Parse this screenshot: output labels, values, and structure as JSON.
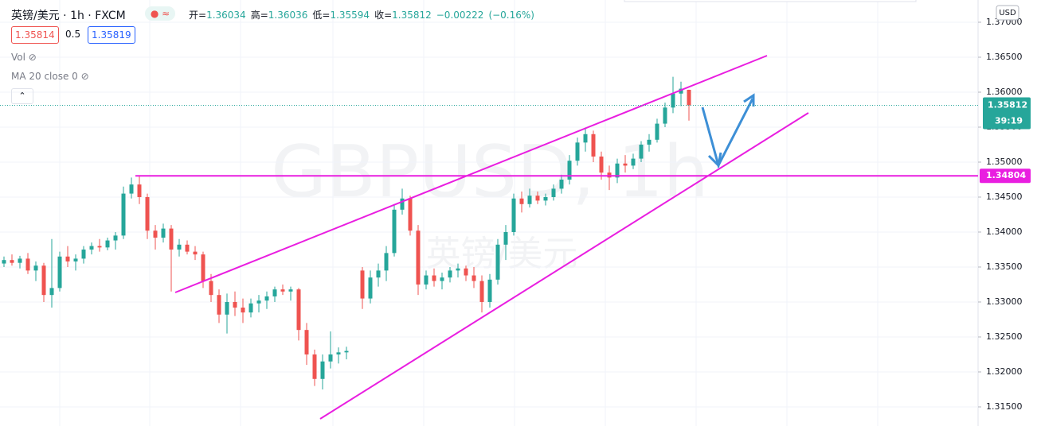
{
  "header": {
    "title": "英镑/美元 · 1h · FXCM",
    "ohlc": [
      {
        "label": "开=",
        "value": "1.36034"
      },
      {
        "label": "高=",
        "value": "1.36036"
      },
      {
        "label": "低=",
        "value": "1.35594"
      },
      {
        "label": "收=",
        "value": "1.35812"
      }
    ],
    "change": "−0.00222",
    "change_pct": "(−0.16%)",
    "bid": "1.35814",
    "spread": "0.5",
    "ask": "1.35819",
    "indicators": [
      "Vol",
      "MA 20 close 0"
    ]
  },
  "currency": "USD",
  "watermark": {
    "symbol": "GBPUSD, 1h",
    "name": "英镑/美元"
  },
  "chart_data": {
    "type": "candlestick",
    "up_color": "#26a69a",
    "down_color": "#ef5350",
    "grid": true,
    "ylim": [
      1.31227,
      1.37318
    ],
    "yticks": [
      {
        "value": 1.315,
        "label": "1.31500"
      },
      {
        "value": 1.32,
        "label": "1.32000"
      },
      {
        "value": 1.325,
        "label": "1.32500"
      },
      {
        "value": 1.33,
        "label": "1.33000"
      },
      {
        "value": 1.335,
        "label": "1.33500"
      },
      {
        "value": 1.34,
        "label": "1.34000"
      },
      {
        "value": 1.345,
        "label": "1.34500"
      },
      {
        "value": 1.35,
        "label": "1.35000"
      },
      {
        "value": 1.355,
        "label": "1.35500"
      },
      {
        "value": 1.36,
        "label": "1.36000"
      },
      {
        "value": 1.365,
        "label": "1.36500"
      },
      {
        "value": 1.37,
        "label": "1.37000"
      }
    ],
    "last_price": 1.35812,
    "last_price_color": "#26a69a",
    "countdown": "39:19",
    "levels": [
      {
        "value": 1.34804,
        "color": "#e91ee0"
      }
    ],
    "ohlc": [
      [
        1.3355,
        1.3365,
        1.335,
        1.336
      ],
      [
        1.336,
        1.3368,
        1.3352,
        1.3356
      ],
      [
        1.3356,
        1.3366,
        1.3348,
        1.3362
      ],
      [
        1.3362,
        1.337,
        1.334,
        1.3345
      ],
      [
        1.3345,
        1.3358,
        1.333,
        1.3352
      ],
      [
        1.3352,
        1.3356,
        1.33,
        1.331
      ],
      [
        1.331,
        1.339,
        1.3292,
        1.332
      ],
      [
        1.332,
        1.3372,
        1.3315,
        1.3365
      ],
      [
        1.3365,
        1.338,
        1.335,
        1.3358
      ],
      [
        1.3358,
        1.3368,
        1.3345,
        1.3362
      ],
      [
        1.3362,
        1.338,
        1.3355,
        1.3375
      ],
      [
        1.3375,
        1.3385,
        1.3368,
        1.338
      ],
      [
        1.338,
        1.339,
        1.3372,
        1.3378
      ],
      [
        1.3378,
        1.3392,
        1.3374,
        1.3388
      ],
      [
        1.3388,
        1.34,
        1.3375,
        1.3395
      ],
      [
        1.3395,
        1.3465,
        1.339,
        1.3455
      ],
      [
        1.3455,
        1.3478,
        1.3448,
        1.3468
      ],
      [
        1.3468,
        1.348,
        1.344,
        1.345
      ],
      [
        1.345,
        1.3455,
        1.339,
        1.3402
      ],
      [
        1.3402,
        1.341,
        1.3375,
        1.3392
      ],
      [
        1.3392,
        1.3412,
        1.3385,
        1.3405
      ],
      [
        1.3405,
        1.341,
        1.3315,
        1.3375
      ],
      [
        1.3375,
        1.339,
        1.3365,
        1.3382
      ],
      [
        1.3382,
        1.3388,
        1.3368,
        1.3372
      ],
      [
        1.3372,
        1.338,
        1.336,
        1.3368
      ],
      [
        1.3368,
        1.3372,
        1.332,
        1.333
      ],
      [
        1.333,
        1.334,
        1.33,
        1.331
      ],
      [
        1.331,
        1.3318,
        1.327,
        1.3282
      ],
      [
        1.3282,
        1.3312,
        1.3255,
        1.33
      ],
      [
        1.33,
        1.3315,
        1.328,
        1.3292
      ],
      [
        1.3292,
        1.3305,
        1.327,
        1.3285
      ],
      [
        1.3285,
        1.3305,
        1.3278,
        1.3298
      ],
      [
        1.3298,
        1.331,
        1.3285,
        1.3302
      ],
      [
        1.3302,
        1.3315,
        1.329,
        1.3308
      ],
      [
        1.3308,
        1.3322,
        1.33,
        1.3318
      ],
      [
        1.3318,
        1.3325,
        1.331,
        1.3315
      ],
      [
        1.3315,
        1.3322,
        1.3302,
        1.3318
      ],
      [
        1.3318,
        1.332,
        1.3245,
        1.326
      ],
      [
        1.326,
        1.327,
        1.321,
        1.3225
      ],
      [
        1.3225,
        1.3232,
        1.318,
        1.319
      ],
      [
        1.319,
        1.3225,
        1.3175,
        1.3215
      ],
      [
        1.3215,
        1.3258,
        1.3205,
        1.3225
      ],
      [
        1.3225,
        1.3235,
        1.3212,
        1.3228
      ],
      [
        1.3228,
        1.3236,
        1.3218,
        1.323
      ],
      null,
      [
        1.3345,
        1.335,
        1.329,
        1.3305
      ],
      [
        1.3305,
        1.3345,
        1.3298,
        1.3335
      ],
      [
        1.3335,
        1.3355,
        1.3322,
        1.3345
      ],
      [
        1.3345,
        1.338,
        1.333,
        1.337
      ],
      [
        1.337,
        1.344,
        1.3365,
        1.3432
      ],
      [
        1.3432,
        1.3462,
        1.3425,
        1.3448
      ],
      [
        1.3448,
        1.3452,
        1.3395,
        1.3402
      ],
      [
        1.3402,
        1.341,
        1.331,
        1.3325
      ],
      [
        1.3325,
        1.3345,
        1.3318,
        1.3338
      ],
      [
        1.3338,
        1.3348,
        1.3322,
        1.333
      ],
      [
        1.333,
        1.3342,
        1.3318,
        1.3335
      ],
      [
        1.3335,
        1.335,
        1.3328,
        1.3345
      ],
      [
        1.3345,
        1.3355,
        1.3335,
        1.3348
      ],
      [
        1.3348,
        1.3352,
        1.333,
        1.3338
      ],
      [
        1.3338,
        1.335,
        1.332,
        1.333
      ],
      [
        1.333,
        1.3338,
        1.3285,
        1.33
      ],
      [
        1.33,
        1.334,
        1.3292,
        1.3332
      ],
      [
        1.3332,
        1.339,
        1.3325,
        1.3382
      ],
      [
        1.3382,
        1.341,
        1.336,
        1.34
      ],
      [
        1.34,
        1.3455,
        1.3395,
        1.3448
      ],
      [
        1.3448,
        1.3458,
        1.3428,
        1.344
      ],
      [
        1.344,
        1.3462,
        1.3435,
        1.3452
      ],
      [
        1.3452,
        1.3458,
        1.344,
        1.3445
      ],
      [
        1.3445,
        1.3455,
        1.3438,
        1.345
      ],
      [
        1.345,
        1.3468,
        1.3445,
        1.3462
      ],
      [
        1.3462,
        1.3482,
        1.3455,
        1.3475
      ],
      [
        1.3475,
        1.351,
        1.3468,
        1.3502
      ],
      [
        1.3502,
        1.3535,
        1.3495,
        1.3528
      ],
      [
        1.3528,
        1.3548,
        1.3515,
        1.354
      ],
      [
        1.354,
        1.3545,
        1.35,
        1.3508
      ],
      [
        1.3508,
        1.3515,
        1.3475,
        1.3485
      ],
      [
        1.3485,
        1.3495,
        1.346,
        1.3478
      ],
      [
        1.3478,
        1.3505,
        1.347,
        1.3498
      ],
      [
        1.3498,
        1.351,
        1.3485,
        1.3495
      ],
      [
        1.3495,
        1.3512,
        1.349,
        1.3505
      ],
      [
        1.3505,
        1.353,
        1.35,
        1.3525
      ],
      [
        1.3525,
        1.354,
        1.3515,
        1.3532
      ],
      [
        1.3532,
        1.3562,
        1.3528,
        1.3555
      ],
      [
        1.3555,
        1.3585,
        1.355,
        1.3578
      ],
      [
        1.3578,
        1.3622,
        1.357,
        1.3598
      ],
      [
        1.3598,
        1.3615,
        1.358,
        1.3605
      ],
      [
        1.36034,
        1.36036,
        1.35594,
        1.35812
      ]
    ]
  }
}
